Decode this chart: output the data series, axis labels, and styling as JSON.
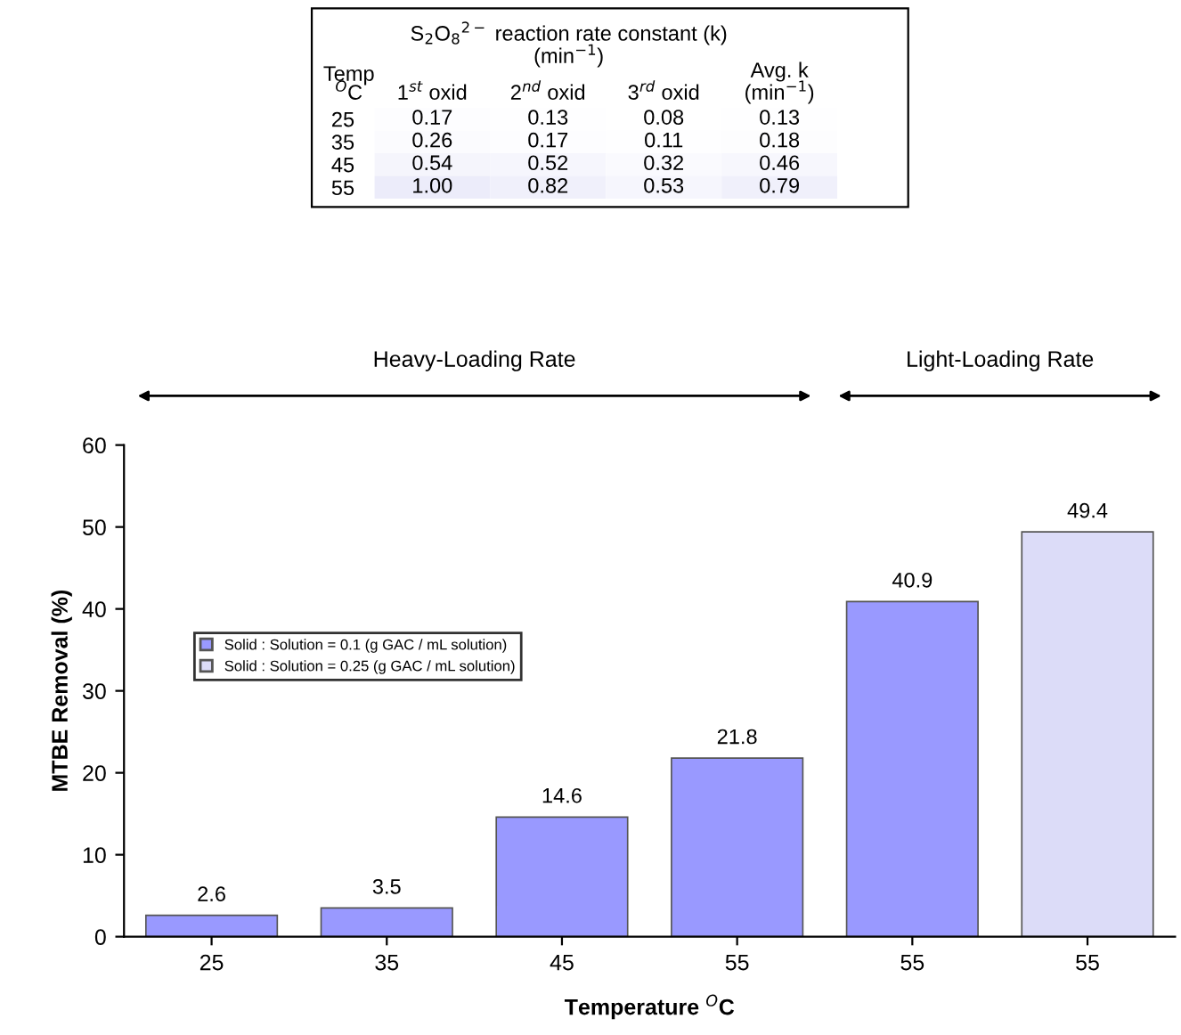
{
  "chart_data": [
    {
      "type": "heatmap",
      "title": "S$_{2}$O$_{8}$$^{2−}$ reaction rate constant (k)\n(min$^{−1}$)",
      "ylabel": "Temp\n$^{O}$C",
      "categories": [
        "1$^{st}$ oxid",
        "2$^{nd}$ oxid",
        "3$^{rd}$ oxid",
        "Avg. k\n(min$^{−1}$)"
      ],
      "y_categories": [
        "25",
        "35",
        "45",
        "55"
      ],
      "cells": [
        [
          0.17,
          0.13,
          0.08,
          0.13
        ],
        [
          0.26,
          0.17,
          0.11,
          0.18
        ],
        [
          0.54,
          0.52,
          0.32,
          0.46
        ],
        [
          1.0,
          0.82,
          0.53,
          0.79
        ]
      ],
      "cell_labels": [
        [
          "0.17",
          "0.13",
          "0.08",
          "0.13"
        ],
        [
          "0.26",
          "0.17",
          "0.11",
          "0.18"
        ],
        [
          "0.54",
          "0.52",
          "0.32",
          "0.46"
        ],
        [
          "1.00",
          "0.82",
          "0.53",
          "0.79"
        ]
      ]
    },
    {
      "type": "bar",
      "xlabel": "Temperature $^{O}$C",
      "ylabel": "MTBE Removal (%)",
      "categories": [
        "25",
        "35",
        "45",
        "55",
        "55",
        "55"
      ],
      "series": [
        {
          "name": "Solid : Solution = 0.1 (g GAC / mL solution)",
          "color": "#9999ff",
          "values": [
            2.6,
            3.5,
            14.6,
            21.8,
            40.9,
            null
          ]
        },
        {
          "name": "Solid : Solution = 0.25 (g GAC / mL solution)",
          "color": "#dcdcf8",
          "values": [
            null,
            null,
            null,
            null,
            null,
            49.4
          ]
        }
      ],
      "ylim": [
        0,
        60
      ],
      "yticks": [
        0,
        10,
        20,
        30,
        40,
        50,
        60
      ],
      "grid": false,
      "legend": "left",
      "data_labels": true,
      "annotations": [
        "Heavy-Loading Rate",
        "Light-Loading Rate"
      ]
    }
  ]
}
